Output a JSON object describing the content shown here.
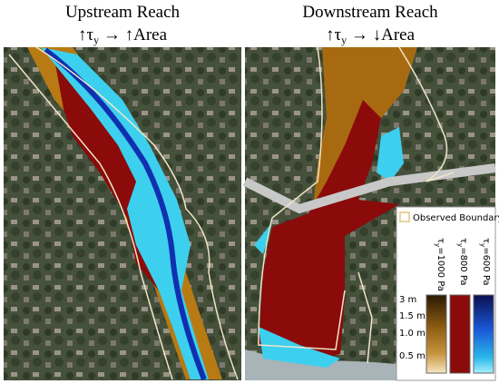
{
  "panels": [
    {
      "title": "Upstream Reach",
      "subtitle": {
        "lead": "↑τ",
        "sub": "y",
        "rest": " → ↑Area"
      }
    },
    {
      "title": "Downstream Reach",
      "subtitle": {
        "lead": "↑τ",
        "sub": "y",
        "rest": " → ↓Area"
      }
    }
  ],
  "legend": {
    "boundary": "Observed Boundary",
    "items": [
      {
        "lead": "τ",
        "sub": "y",
        "rest": "=1000 Pa"
      },
      {
        "lead": "τ",
        "sub": "y",
        "rest": "=800 Pa"
      },
      {
        "lead": "τ",
        "sub": "y",
        "rest": "=600 Pa"
      }
    ],
    "scale_labels": [
      "3 m",
      "1.5 m",
      "1.0 m",
      "0.5 m"
    ]
  }
}
